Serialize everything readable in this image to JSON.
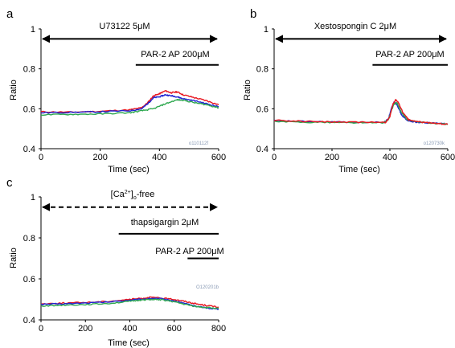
{
  "colors": {
    "red": "#e8141e",
    "blue": "#1f24d2",
    "green": "#2ea84f",
    "black": "#000000",
    "stamp": "#8a9bb5"
  },
  "chart_data": [
    {
      "type": "line",
      "panel_label": "a",
      "xlabel": "Time (sec)",
      "ylabel": "Ratio",
      "xlim": [
        0,
        600
      ],
      "ylim": [
        0.4,
        1.0
      ],
      "xticks": [
        "0",
        "200",
        "400",
        "600"
      ],
      "yticks": [
        "0.4",
        "0.6",
        "0.8",
        "1"
      ],
      "id_stamp": "o110112f",
      "annotations": [
        {
          "text": "U73122  5μM",
          "from": 0,
          "to": 600,
          "y": 0.95,
          "style": "double-arrow"
        },
        {
          "text": "PAR-2 AP 200μM",
          "from": 320,
          "to": 600,
          "y": 0.82,
          "style": "bar"
        }
      ],
      "series": [
        {
          "color": "red",
          "x": [
            0,
            100,
            200,
            300,
            340,
            360,
            380,
            400,
            420,
            440,
            460,
            480,
            520,
            560,
            600
          ],
          "y": [
            0.585,
            0.583,
            0.587,
            0.595,
            0.605,
            0.63,
            0.665,
            0.675,
            0.69,
            0.68,
            0.685,
            0.67,
            0.655,
            0.64,
            0.62
          ]
        },
        {
          "color": "blue",
          "x": [
            0,
            100,
            200,
            300,
            340,
            360,
            380,
            400,
            420,
            440,
            460,
            480,
            520,
            560,
            600
          ],
          "y": [
            0.58,
            0.582,
            0.585,
            0.59,
            0.6,
            0.625,
            0.655,
            0.66,
            0.67,
            0.665,
            0.66,
            0.65,
            0.64,
            0.625,
            0.61
          ]
        },
        {
          "color": "green",
          "x": [
            0,
            100,
            200,
            300,
            340,
            380,
            420,
            460,
            480,
            520,
            560,
            600
          ],
          "y": [
            0.57,
            0.572,
            0.574,
            0.58,
            0.59,
            0.6,
            0.625,
            0.645,
            0.643,
            0.63,
            0.62,
            0.605
          ]
        }
      ]
    },
    {
      "type": "line",
      "panel_label": "b",
      "xlabel": "Time (sec)",
      "ylabel": "Ratio",
      "xlim": [
        0,
        600
      ],
      "ylim": [
        0.4,
        1.0
      ],
      "xticks": [
        "0",
        "200",
        "400",
        "600"
      ],
      "yticks": [
        "0.4",
        "0.6",
        "0.8",
        "1"
      ],
      "id_stamp": "o120730k",
      "annotations": [
        {
          "text": "Xestospongin C 2μM",
          "from": 0,
          "to": 600,
          "y": 0.95,
          "style": "double-arrow"
        },
        {
          "text": "PAR-2 AP 200μM",
          "from": 340,
          "to": 600,
          "y": 0.82,
          "style": "bar"
        }
      ],
      "series": [
        {
          "color": "blue",
          "x": [
            0,
            100,
            200,
            300,
            380,
            395,
            405,
            415,
            425,
            440,
            460,
            500,
            550,
            600
          ],
          "y": [
            0.54,
            0.536,
            0.534,
            0.532,
            0.532,
            0.55,
            0.6,
            0.635,
            0.62,
            0.57,
            0.54,
            0.532,
            0.528,
            0.524
          ]
        },
        {
          "color": "green",
          "x": [
            0,
            100,
            200,
            300,
            380,
            395,
            405,
            415,
            425,
            440,
            460,
            500,
            550,
            600
          ],
          "y": [
            0.536,
            0.533,
            0.532,
            0.53,
            0.53,
            0.545,
            0.59,
            0.625,
            0.63,
            0.58,
            0.545,
            0.533,
            0.528,
            0.522
          ]
        },
        {
          "color": "red",
          "x": [
            0,
            100,
            200,
            300,
            385,
            400,
            410,
            420,
            430,
            445,
            465,
            500,
            550,
            600
          ],
          "y": [
            0.542,
            0.537,
            0.534,
            0.532,
            0.532,
            0.56,
            0.62,
            0.645,
            0.63,
            0.58,
            0.545,
            0.534,
            0.528,
            0.522
          ]
        }
      ]
    },
    {
      "type": "line",
      "panel_label": "c",
      "xlabel": "Time (sec)",
      "ylabel": "Ratio",
      "xlim": [
        0,
        800
      ],
      "ylim": [
        0.4,
        1.0
      ],
      "xticks": [
        "0",
        "200",
        "400",
        "600",
        "800"
      ],
      "yticks": [
        "0.4",
        "0.6",
        "0.8",
        "1"
      ],
      "id_stamp": "O120201b",
      "annotations": [
        {
          "text": "[Ca2+]o-free",
          "from": 0,
          "to": 800,
          "y": 0.95,
          "style": "dashed-double-arrow"
        },
        {
          "text": "thapsigargin 2μM",
          "from": 350,
          "to": 800,
          "y": 0.82,
          "style": "bar"
        },
        {
          "text": "PAR-2 AP 200μM",
          "from": 660,
          "to": 800,
          "y": 0.7,
          "style": "bar"
        }
      ],
      "series": [
        {
          "color": "red",
          "x": [
            0,
            100,
            200,
            300,
            400,
            450,
            500,
            550,
            600,
            650,
            700,
            750,
            800
          ],
          "y": [
            0.478,
            0.482,
            0.485,
            0.49,
            0.5,
            0.505,
            0.51,
            0.505,
            0.5,
            0.49,
            0.478,
            0.47,
            0.462
          ]
        },
        {
          "color": "blue",
          "x": [
            0,
            100,
            200,
            300,
            400,
            450,
            500,
            550,
            600,
            650,
            700,
            750,
            800
          ],
          "y": [
            0.476,
            0.478,
            0.482,
            0.487,
            0.496,
            0.5,
            0.505,
            0.502,
            0.492,
            0.48,
            0.466,
            0.458,
            0.452
          ]
        },
        {
          "color": "green",
          "x": [
            0,
            100,
            200,
            300,
            400,
            450,
            500,
            550,
            600,
            650,
            700,
            750,
            800
          ],
          "y": [
            0.468,
            0.472,
            0.475,
            0.48,
            0.49,
            0.497,
            0.5,
            0.497,
            0.488,
            0.475,
            0.465,
            0.46,
            0.455
          ]
        }
      ]
    }
  ]
}
